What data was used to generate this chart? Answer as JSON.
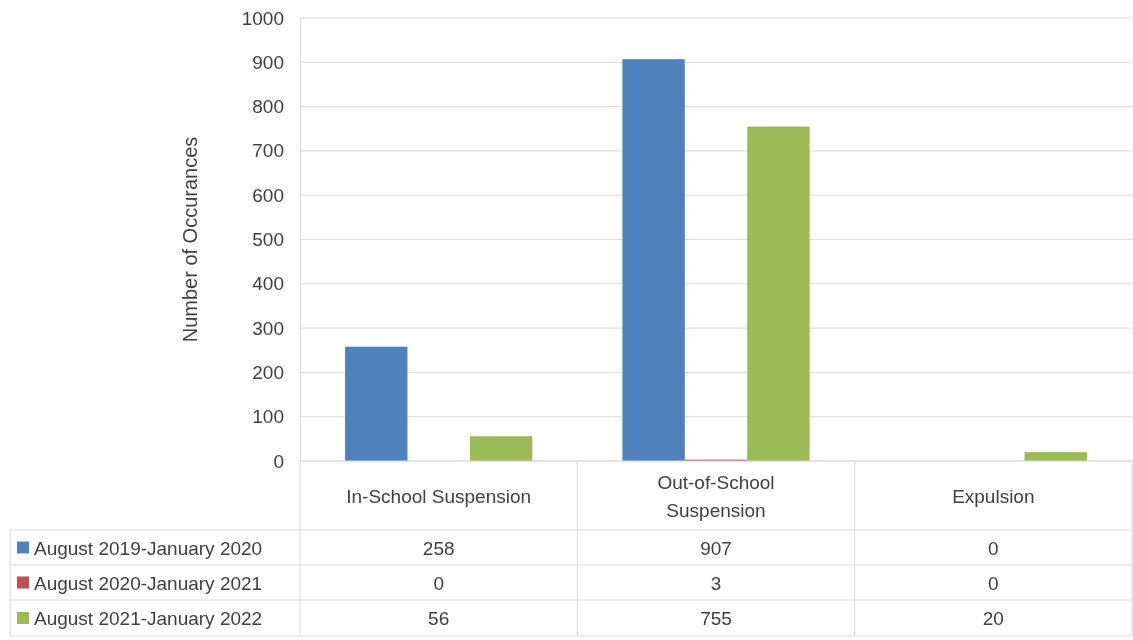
{
  "chart_data": {
    "type": "bar",
    "ylabel": "Number of Occurances",
    "categories": [
      "In-School Suspension",
      "Out-of-School Suspension",
      "Expulsion"
    ],
    "series": [
      {
        "name": "August 2019-January 2020",
        "color": "#4f81bd",
        "values": [
          258,
          907,
          0
        ]
      },
      {
        "name": "August 2020-January 2021",
        "color": "#c0504d",
        "values": [
          0,
          3,
          0
        ]
      },
      {
        "name": "August 2021-January 2022",
        "color": "#9bbb59",
        "values": [
          56,
          755,
          20
        ]
      }
    ],
    "ylim": [
      0,
      1000
    ],
    "yticks": [
      0,
      100,
      200,
      300,
      400,
      500,
      600,
      700,
      800,
      900,
      1000
    ],
    "grid": "y",
    "legend": "bottom",
    "data_labels": true
  }
}
